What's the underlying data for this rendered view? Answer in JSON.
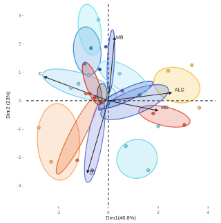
{
  "chart_data": {
    "type": "scatter",
    "xlabel": "Dim1(46.8%)",
    "ylabel": "Dim2 (23%)",
    "xlim": [
      -3.3,
      4.3
    ],
    "ylim": [
      -3.7,
      3.4
    ],
    "x_ticks": [
      -2,
      0,
      2,
      4
    ],
    "y_ticks": [
      3,
      2,
      1,
      0,
      -1,
      -2,
      -3
    ],
    "x_tick_labels": [
      "-2",
      "0",
      "2",
      "4"
    ],
    "y_tick_labels": [
      "3 -",
      "2 -",
      "1 -",
      "0 -",
      "-1 -",
      "-2 -",
      "-3 -"
    ],
    "grid": false,
    "legend": "none",
    "reference_lines": {
      "x": 0,
      "y": 0,
      "style": "dashed"
    },
    "variables": [
      {
        "label": "ALG",
        "x": 2.55,
        "y": 0.28
      },
      {
        "label": "MD",
        "x": 2.0,
        "y": -0.35
      },
      {
        "label": "C",
        "x": -2.6,
        "y": 0.85
      },
      {
        "label": "DT",
        "x": -0.85,
        "y": -2.55
      },
      {
        "label": "MB",
        "x": 0.25,
        "y": 2.25
      }
    ],
    "ellipses": [
      {
        "color": "#f5c242",
        "cx": 2.75,
        "cy": 0.55,
        "rx": 0.95,
        "ry": 0.6,
        "angle": -18
      },
      {
        "color": "#e0533c",
        "cx": 2.25,
        "cy": -0.55,
        "rx": 1.05,
        "ry": 0.33,
        "angle": -13
      },
      {
        "color": "#f7a96a",
        "cx": -2.0,
        "cy": -1.45,
        "rx": 0.85,
        "ry": 1.35,
        "angle": 3
      },
      {
        "color": "#e96b2c",
        "cx": -1.25,
        "cy": -1.2,
        "rx": 0.3,
        "ry": 1.55,
        "angle": -27
      },
      {
        "color": "#6a78d8",
        "cx": -0.55,
        "cy": -1.45,
        "rx": 0.3,
        "ry": 1.45,
        "angle": -10
      },
      {
        "color": "#6ed4ea",
        "cx": 1.15,
        "cy": -2.05,
        "rx": 0.82,
        "ry": 0.68,
        "angle": 20
      },
      {
        "color": "#7cc8ee",
        "cx": -1.15,
        "cy": 0.55,
        "rx": 1.55,
        "ry": 0.42,
        "angle": -17
      },
      {
        "color": "#4a6fd0",
        "cx": 1.05,
        "cy": -0.05,
        "rx": 1.45,
        "ry": 0.42,
        "angle": 22
      },
      {
        "color": "#2a4fc8",
        "cx": 0.7,
        "cy": 0.2,
        "rx": 1.2,
        "ry": 0.22,
        "angle": 25
      },
      {
        "color": "#3b8ed8",
        "cx": -0.85,
        "cy": 1.75,
        "rx": 0.55,
        "ry": 0.85,
        "angle": 5
      },
      {
        "color": "#78def0",
        "cx": -0.75,
        "cy": 2.5,
        "rx": 0.45,
        "ry": 0.9,
        "angle": 8
      },
      {
        "color": "#3a5ad8",
        "cx": 0.1,
        "cy": 1.4,
        "rx": 0.14,
        "ry": 1.1,
        "angle": -3
      },
      {
        "color": "#8cd6ee",
        "cx": 0.6,
        "cy": 0.8,
        "rx": 1.1,
        "ry": 0.42,
        "angle": -30
      },
      {
        "color": "#d23c3c",
        "cx": -0.65,
        "cy": 0.6,
        "rx": 0.26,
        "ry": 0.8,
        "angle": 20
      },
      {
        "color": "#555555",
        "cx": -0.25,
        "cy": 0.25,
        "rx": 0.2,
        "ry": 0.35,
        "angle": 0
      }
    ],
    "points": [
      {
        "x": 2.4,
        "y": 1.05,
        "color": "#f5c242"
      },
      {
        "x": 3.35,
        "y": 1.25,
        "color": "#f5c242"
      },
      {
        "x": 3.65,
        "y": -0.25,
        "color": "#f5c242"
      },
      {
        "x": 1.8,
        "y": -0.45,
        "color": "#e0533c"
      },
      {
        "x": 3.05,
        "y": -0.85,
        "color": "#e0533c"
      },
      {
        "x": -2.8,
        "y": -0.95,
        "color": "#f7a96a"
      },
      {
        "x": -2.3,
        "y": -2.15,
        "color": "#f7a96a"
      },
      {
        "x": -1.25,
        "y": -2.1,
        "color": "#e96b2c"
      },
      {
        "x": -0.9,
        "y": 0.25,
        "color": "#e96b2c"
      },
      {
        "x": -0.65,
        "y": -2.45,
        "color": "#6a78d8"
      },
      {
        "x": -0.35,
        "y": -0.3,
        "color": "#6a78d8"
      },
      {
        "x": 0.7,
        "y": -1.6,
        "color": "#6ed4ea"
      },
      {
        "x": 1.6,
        "y": -2.45,
        "color": "#6ed4ea"
      },
      {
        "x": 2.0,
        "y": -0.9,
        "color": "#6ed4ea"
      },
      {
        "x": -1.5,
        "y": 0.45,
        "color": "#7cc8ee"
      },
      {
        "x": -0.8,
        "y": 0.9,
        "color": "#7cc8ee"
      },
      {
        "x": 0.55,
        "y": 0.35,
        "color": "#4a6fd0"
      },
      {
        "x": 1.25,
        "y": 0.2,
        "color": "#4a6fd0"
      },
      {
        "x": -0.35,
        "y": 1.1,
        "color": "#2a4fc8"
      },
      {
        "x": -0.7,
        "y": 1.85,
        "color": "#3b8ed8"
      },
      {
        "x": -0.95,
        "y": 1.3,
        "color": "#3b8ed8"
      },
      {
        "x": -0.4,
        "y": 2.85,
        "color": "#78def0"
      },
      {
        "x": -0.1,
        "y": 1.9,
        "color": "#3a5ad8"
      },
      {
        "x": 0.45,
        "y": 0.95,
        "color": "#8cd6ee"
      },
      {
        "x": -0.75,
        "y": 0.25,
        "color": "#d23c3c"
      },
      {
        "x": -0.55,
        "y": 0.1,
        "color": "#d23c3c"
      },
      {
        "x": -0.2,
        "y": -0.05,
        "color": "#e96b2c"
      },
      {
        "x": -1.2,
        "y": 0.6,
        "color": "#7cc8ee"
      },
      {
        "x": 0.0,
        "y": -0.1,
        "color": "#4a6fd0"
      },
      {
        "x": -0.3,
        "y": -0.05,
        "color": "#555555"
      }
    ]
  }
}
